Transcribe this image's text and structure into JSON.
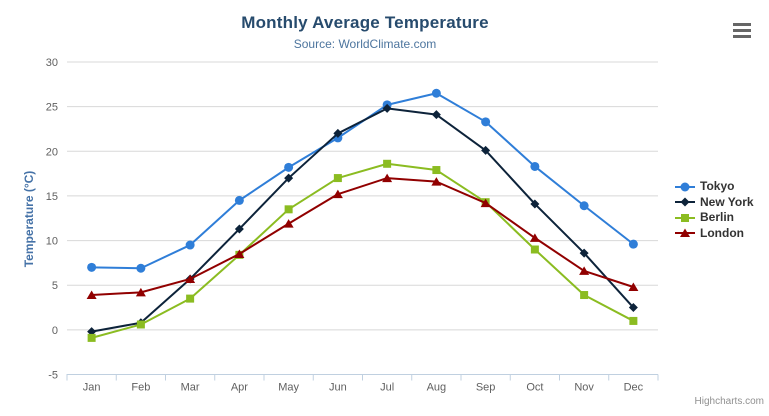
{
  "chart": {
    "title": "Monthly Average Temperature",
    "subtitle": "Source: WorldClimate.com",
    "credit": "Highcharts.com",
    "export_menu_icon": "hamburger-menu-icon"
  },
  "chart_data": {
    "type": "line",
    "title": "Monthly Average Temperature",
    "subtitle": "Source: WorldClimate.com",
    "xlabel": "",
    "ylabel": "Temperature (°C)",
    "ylim": [
      -5,
      30
    ],
    "yticks": [
      -5,
      0,
      5,
      10,
      15,
      20,
      25,
      30
    ],
    "grid": true,
    "legend_position": "right",
    "categories": [
      "Jan",
      "Feb",
      "Mar",
      "Apr",
      "May",
      "Jun",
      "Jul",
      "Aug",
      "Sep",
      "Oct",
      "Nov",
      "Dec"
    ],
    "series": [
      {
        "name": "Tokyo",
        "color": "#2f7ed8",
        "marker": "circle",
        "values": [
          7.0,
          6.9,
          9.5,
          14.5,
          18.2,
          21.5,
          25.2,
          26.5,
          23.3,
          18.3,
          13.9,
          9.6
        ]
      },
      {
        "name": "New York",
        "color": "#0d233a",
        "marker": "diamond",
        "values": [
          -0.2,
          0.8,
          5.7,
          11.3,
          17.0,
          22.0,
          24.8,
          24.1,
          20.1,
          14.1,
          8.6,
          2.5
        ]
      },
      {
        "name": "Berlin",
        "color": "#8bbc21",
        "marker": "square",
        "values": [
          -0.9,
          0.6,
          3.5,
          8.4,
          13.5,
          17.0,
          18.6,
          17.9,
          14.3,
          9.0,
          3.9,
          1.0
        ]
      },
      {
        "name": "London",
        "color": "#910000",
        "marker": "triangle",
        "values": [
          3.9,
          4.2,
          5.7,
          8.5,
          11.9,
          15.2,
          17.0,
          16.6,
          14.2,
          10.3,
          6.6,
          4.8
        ]
      }
    ],
    "style": {
      "grid_color": "#d8d8d8",
      "axis_line_color": "#c0d0e0",
      "axis_label_color": "#606060",
      "title_color": "#274b6d",
      "subtitle_color": "#4d759e",
      "yaxis_title_color": "#4572a7",
      "legend_text_color": "#333333",
      "credit_color": "#909090"
    }
  }
}
